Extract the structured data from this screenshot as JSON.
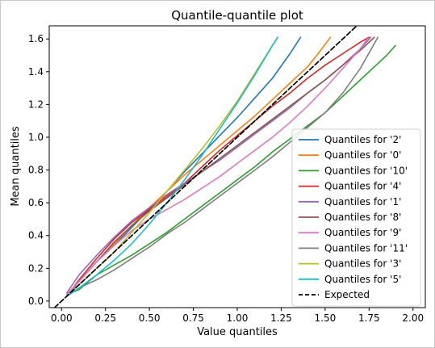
{
  "chart_data": {
    "type": "line",
    "title": "Quantile-quantile plot",
    "xlabel": "Value quantiles",
    "ylabel": "Mean quantiles",
    "xlim": [
      -0.07,
      2.07
    ],
    "ylim": [
      -0.04,
      1.68
    ],
    "xticks": [
      0.0,
      0.25,
      0.5,
      0.75,
      1.0,
      1.25,
      1.5,
      1.75,
      2.0
    ],
    "xtick_labels": [
      "0.00",
      "0.25",
      "0.50",
      "0.75",
      "1.00",
      "1.25",
      "1.50",
      "1.75",
      "2.00"
    ],
    "yticks": [
      0.0,
      0.2,
      0.4,
      0.6,
      0.8,
      1.0,
      1.2,
      1.4,
      1.6
    ],
    "ytick_labels": [
      "0.0",
      "0.2",
      "0.4",
      "0.6",
      "0.8",
      "1.0",
      "1.2",
      "1.4",
      "1.6"
    ],
    "grid": false,
    "legend_position": "lower-right",
    "series": [
      {
        "name": "Quantiles for '2'",
        "color": "#1f77b4",
        "points": [
          [
            0.03,
            0.04
          ],
          [
            0.1,
            0.12
          ],
          [
            0.2,
            0.24
          ],
          [
            0.3,
            0.34
          ],
          [
            0.4,
            0.45
          ],
          [
            0.5,
            0.56
          ],
          [
            0.6,
            0.67
          ],
          [
            0.7,
            0.79
          ],
          [
            0.8,
            0.9
          ],
          [
            0.9,
            1.01
          ],
          [
            1.0,
            1.12
          ],
          [
            1.1,
            1.24
          ],
          [
            1.2,
            1.36
          ],
          [
            1.3,
            1.51
          ],
          [
            1.36,
            1.61
          ]
        ]
      },
      {
        "name": "Quantiles for '0'",
        "color": "#ff7f0e",
        "points": [
          [
            0.03,
            0.04
          ],
          [
            0.1,
            0.12
          ],
          [
            0.2,
            0.24
          ],
          [
            0.3,
            0.35
          ],
          [
            0.4,
            0.46
          ],
          [
            0.5,
            0.57
          ],
          [
            0.6,
            0.67
          ],
          [
            0.7,
            0.77
          ],
          [
            0.8,
            0.86
          ],
          [
            0.9,
            0.95
          ],
          [
            1.0,
            1.04
          ],
          [
            1.1,
            1.13
          ],
          [
            1.2,
            1.23
          ],
          [
            1.3,
            1.33
          ],
          [
            1.4,
            1.43
          ],
          [
            1.46,
            1.51
          ],
          [
            1.53,
            1.61
          ]
        ]
      },
      {
        "name": "Quantiles for '10'",
        "color": "#2ca02c",
        "points": [
          [
            0.03,
            0.04
          ],
          [
            0.1,
            0.07
          ],
          [
            0.2,
            0.16
          ],
          [
            0.3,
            0.22
          ],
          [
            0.4,
            0.28
          ],
          [
            0.5,
            0.35
          ],
          [
            0.6,
            0.42
          ],
          [
            0.7,
            0.5
          ],
          [
            0.8,
            0.58
          ],
          [
            0.9,
            0.66
          ],
          [
            1.0,
            0.74
          ],
          [
            1.1,
            0.82
          ],
          [
            1.2,
            0.91
          ],
          [
            1.3,
            0.99
          ],
          [
            1.4,
            1.07
          ],
          [
            1.5,
            1.15
          ],
          [
            1.6,
            1.25
          ],
          [
            1.7,
            1.35
          ],
          [
            1.8,
            1.45
          ],
          [
            1.85,
            1.5
          ],
          [
            1.9,
            1.56
          ]
        ]
      },
      {
        "name": "Quantiles for '4'",
        "color": "#d62728",
        "points": [
          [
            0.03,
            0.03
          ],
          [
            0.1,
            0.13
          ],
          [
            0.2,
            0.26
          ],
          [
            0.3,
            0.38
          ],
          [
            0.4,
            0.48
          ],
          [
            0.5,
            0.56
          ],
          [
            0.6,
            0.64
          ],
          [
            0.7,
            0.72
          ],
          [
            0.8,
            0.82
          ],
          [
            0.9,
            0.92
          ],
          [
            1.0,
            1.01
          ],
          [
            1.1,
            1.1
          ],
          [
            1.2,
            1.19
          ],
          [
            1.3,
            1.27
          ],
          [
            1.4,
            1.36
          ],
          [
            1.5,
            1.44
          ],
          [
            1.6,
            1.51
          ],
          [
            1.7,
            1.58
          ],
          [
            1.75,
            1.61
          ]
        ]
      },
      {
        "name": "Quantiles for '1'",
        "color": "#9467bd",
        "points": [
          [
            0.03,
            0.05
          ],
          [
            0.1,
            0.16
          ],
          [
            0.2,
            0.28
          ],
          [
            0.3,
            0.39
          ],
          [
            0.4,
            0.49
          ],
          [
            0.5,
            0.57
          ],
          [
            0.6,
            0.65
          ],
          [
            0.7,
            0.72
          ],
          [
            0.8,
            0.79
          ],
          [
            0.9,
            0.86
          ],
          [
            1.0,
            0.94
          ],
          [
            1.1,
            1.02
          ],
          [
            1.2,
            1.1
          ],
          [
            1.3,
            1.18
          ],
          [
            1.4,
            1.27
          ],
          [
            1.5,
            1.35
          ],
          [
            1.6,
            1.44
          ],
          [
            1.7,
            1.54
          ],
          [
            1.76,
            1.61
          ]
        ]
      },
      {
        "name": "Quantiles for '8'",
        "color": "#8c564b",
        "points": [
          [
            0.03,
            0.03
          ],
          [
            0.1,
            0.12
          ],
          [
            0.2,
            0.24
          ],
          [
            0.3,
            0.36
          ],
          [
            0.4,
            0.46
          ],
          [
            0.5,
            0.55
          ],
          [
            0.6,
            0.63
          ],
          [
            0.7,
            0.71
          ],
          [
            0.8,
            0.79
          ],
          [
            0.9,
            0.87
          ],
          [
            1.0,
            0.95
          ],
          [
            1.1,
            1.03
          ],
          [
            1.2,
            1.11
          ],
          [
            1.3,
            1.19
          ],
          [
            1.4,
            1.27
          ],
          [
            1.5,
            1.35
          ],
          [
            1.6,
            1.44
          ],
          [
            1.7,
            1.53
          ],
          [
            1.78,
            1.61
          ]
        ]
      },
      {
        "name": "Quantiles for '9'",
        "color": "#e377c2",
        "points": [
          [
            0.03,
            0.04
          ],
          [
            0.1,
            0.12
          ],
          [
            0.2,
            0.24
          ],
          [
            0.3,
            0.34
          ],
          [
            0.4,
            0.43
          ],
          [
            0.5,
            0.5
          ],
          [
            0.6,
            0.56
          ],
          [
            0.7,
            0.62
          ],
          [
            0.8,
            0.69
          ],
          [
            0.9,
            0.76
          ],
          [
            1.0,
            0.84
          ],
          [
            1.1,
            0.92
          ],
          [
            1.2,
            1.0
          ],
          [
            1.3,
            1.09
          ],
          [
            1.4,
            1.19
          ],
          [
            1.5,
            1.3
          ],
          [
            1.6,
            1.42
          ],
          [
            1.7,
            1.54
          ],
          [
            1.74,
            1.6
          ]
        ]
      },
      {
        "name": "Quantiles for '11'",
        "color": "#7f7f7f",
        "points": [
          [
            0.03,
            0.03
          ],
          [
            0.1,
            0.08
          ],
          [
            0.2,
            0.13
          ],
          [
            0.3,
            0.19
          ],
          [
            0.4,
            0.26
          ],
          [
            0.5,
            0.33
          ],
          [
            0.6,
            0.41
          ],
          [
            0.7,
            0.48
          ],
          [
            0.8,
            0.56
          ],
          [
            0.9,
            0.64
          ],
          [
            1.0,
            0.72
          ],
          [
            1.1,
            0.8
          ],
          [
            1.2,
            0.88
          ],
          [
            1.3,
            0.97
          ],
          [
            1.4,
            1.06
          ],
          [
            1.5,
            1.15
          ],
          [
            1.6,
            1.27
          ],
          [
            1.7,
            1.42
          ],
          [
            1.8,
            1.61
          ]
        ]
      },
      {
        "name": "Quantiles for '3'",
        "color": "#bcbd22",
        "points": [
          [
            0.03,
            0.03
          ],
          [
            0.1,
            0.1
          ],
          [
            0.2,
            0.2
          ],
          [
            0.3,
            0.3
          ],
          [
            0.4,
            0.42
          ],
          [
            0.5,
            0.54
          ],
          [
            0.6,
            0.67
          ],
          [
            0.7,
            0.8
          ],
          [
            0.8,
            0.93
          ],
          [
            0.9,
            1.07
          ],
          [
            1.0,
            1.22
          ],
          [
            1.1,
            1.39
          ],
          [
            1.2,
            1.56
          ],
          [
            1.23,
            1.61
          ]
        ]
      },
      {
        "name": "Quantiles for '5'",
        "color": "#17becf",
        "points": [
          [
            0.03,
            0.03
          ],
          [
            0.1,
            0.08
          ],
          [
            0.2,
            0.16
          ],
          [
            0.3,
            0.25
          ],
          [
            0.4,
            0.35
          ],
          [
            0.5,
            0.47
          ],
          [
            0.6,
            0.6
          ],
          [
            0.7,
            0.74
          ],
          [
            0.8,
            0.89
          ],
          [
            0.9,
            1.05
          ],
          [
            1.0,
            1.21
          ],
          [
            1.1,
            1.38
          ],
          [
            1.2,
            1.56
          ],
          [
            1.23,
            1.61
          ]
        ]
      },
      {
        "name": "Expected",
        "color": "#000000",
        "dashed": true,
        "points": [
          [
            -0.07,
            -0.07
          ],
          [
            2.07,
            2.07
          ]
        ]
      }
    ]
  }
}
